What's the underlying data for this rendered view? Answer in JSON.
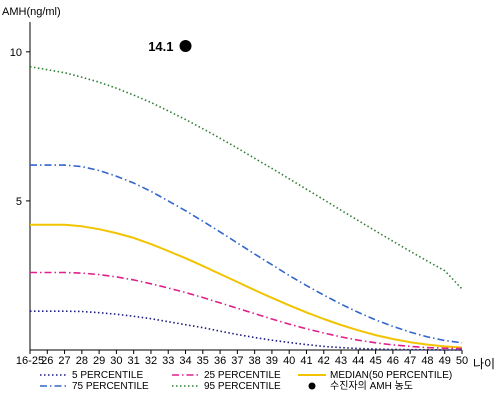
{
  "chart_data": {
    "type": "line",
    "ylabel": "AMH(ng/ml)",
    "xlabel": "나이",
    "categories": [
      "16-25",
      "26",
      "27",
      "28",
      "29",
      "30",
      "31",
      "32",
      "33",
      "34",
      "35",
      "36",
      "37",
      "38",
      "39",
      "40",
      "41",
      "42",
      "43",
      "44",
      "45",
      "46",
      "47",
      "48",
      "49",
      "50"
    ],
    "y_ticks": [
      5,
      10
    ],
    "ylim": [
      0,
      11
    ],
    "grid": false,
    "series": [
      {
        "name": "5 PERCENTILE",
        "color": "#1a1a80",
        "style": "dotted",
        "values": [
          1.3,
          1.3,
          1.3,
          1.29,
          1.25,
          1.2,
          1.13,
          1.05,
          0.95,
          0.85,
          0.75,
          0.63,
          0.52,
          0.42,
          0.33,
          0.25,
          0.18,
          0.12,
          0.08,
          0.05,
          0.03,
          0.02,
          0.01,
          0.01,
          0.0,
          0.0
        ]
      },
      {
        "name": "25 PERCENTILE",
        "color": "#e0208c",
        "style": "dashdot",
        "values": [
          2.6,
          2.6,
          2.6,
          2.58,
          2.53,
          2.45,
          2.35,
          2.22,
          2.08,
          1.93,
          1.76,
          1.58,
          1.4,
          1.22,
          1.04,
          0.87,
          0.71,
          0.57,
          0.44,
          0.33,
          0.24,
          0.17,
          0.12,
          0.08,
          0.06,
          0.05
        ]
      },
      {
        "name": "MEDIAN(50 PERCENTILE)",
        "color": "#f2c300",
        "style": "solid",
        "values": [
          4.2,
          4.2,
          4.2,
          4.15,
          4.05,
          3.92,
          3.76,
          3.55,
          3.32,
          3.08,
          2.82,
          2.55,
          2.28,
          2.01,
          1.75,
          1.5,
          1.26,
          1.04,
          0.84,
          0.66,
          0.5,
          0.37,
          0.26,
          0.18,
          0.12,
          0.08
        ]
      },
      {
        "name": "75 PERCENTILE",
        "color": "#3366cc",
        "style": "dashdot",
        "values": [
          6.2,
          6.2,
          6.2,
          6.15,
          6.02,
          5.83,
          5.6,
          5.32,
          5.0,
          4.67,
          4.32,
          3.96,
          3.59,
          3.22,
          2.86,
          2.5,
          2.16,
          1.84,
          1.54,
          1.26,
          1.01,
          0.79,
          0.6,
          0.44,
          0.32,
          0.24
        ]
      },
      {
        "name": "95 PERCENTILE",
        "color": "#2e7d32",
        "style": "dotted",
        "values": [
          9.5,
          9.4,
          9.3,
          9.15,
          8.98,
          8.78,
          8.55,
          8.3,
          8.02,
          7.73,
          7.42,
          7.1,
          6.77,
          6.43,
          6.09,
          5.74,
          5.39,
          5.04,
          4.69,
          4.34,
          3.99,
          3.65,
          3.31,
          2.98,
          2.66,
          2.05
        ]
      }
    ],
    "marker": {
      "label": "14.1",
      "legend": "수진자의 AMH 농도",
      "x": "34"
    }
  }
}
